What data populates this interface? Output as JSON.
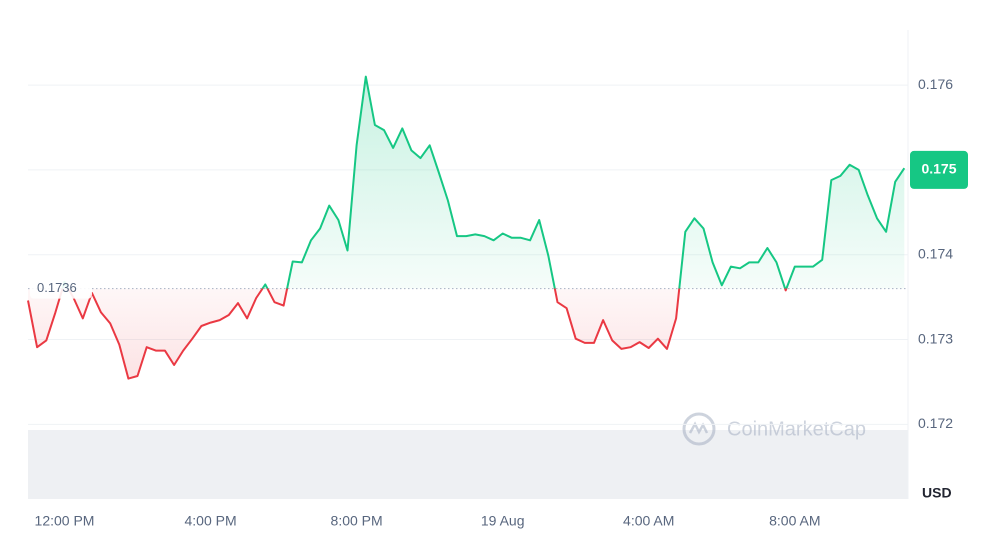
{
  "chart_data": {
    "type": "line",
    "x": [
      -1,
      -0.75,
      -0.5,
      -0.25,
      0,
      0.25,
      0.5,
      0.75,
      1,
      1.25,
      1.5,
      1.75,
      2,
      2.25,
      2.5,
      2.75,
      3,
      3.25,
      3.5,
      3.75,
      4,
      4.25,
      4.5,
      4.75,
      5,
      5.25,
      5.5,
      5.75,
      6,
      6.25,
      6.5,
      6.75,
      7,
      7.25,
      7.5,
      7.75,
      8,
      8.25,
      8.5,
      8.75,
      9,
      9.25,
      9.5,
      9.75,
      10,
      10.25,
      10.5,
      10.75,
      11,
      11.25,
      11.5,
      11.75,
      12,
      12.25,
      12.5,
      12.75,
      13,
      13.25,
      13.5,
      13.75,
      14,
      14.25,
      14.5,
      14.75,
      15,
      15.25,
      15.5,
      15.75,
      16,
      16.25,
      16.5,
      16.75,
      17,
      17.25,
      17.5,
      17.75,
      18,
      18.25,
      18.5,
      18.75,
      19,
      19.25,
      19.5,
      19.75,
      20,
      20.25,
      20.5,
      20.75,
      21,
      21.25,
      21.5,
      21.75,
      22,
      22.25,
      22.5,
      22.75,
      23
    ],
    "series": [
      {
        "name": "USD",
        "values": [
          0.17346,
          0.17291,
          0.17299,
          0.17332,
          0.17368,
          0.17349,
          0.17325,
          0.17355,
          0.17332,
          0.17319,
          0.17294,
          0.17254,
          0.17257,
          0.17291,
          0.17287,
          0.17287,
          0.1727,
          0.17287,
          0.17301,
          0.17316,
          0.1732,
          0.17323,
          0.17329,
          0.17343,
          0.17325,
          0.17349,
          0.17365,
          0.17344,
          0.1734,
          0.17392,
          0.17391,
          0.17417,
          0.17431,
          0.17458,
          0.17441,
          0.17405,
          0.17529,
          0.1761,
          0.17553,
          0.17547,
          0.17526,
          0.17549,
          0.17523,
          0.17514,
          0.17529,
          0.17497,
          0.17464,
          0.17422,
          0.17422,
          0.17424,
          0.17422,
          0.17417,
          0.17425,
          0.1742,
          0.1742,
          0.17417,
          0.17441,
          0.17399,
          0.17344,
          0.17337,
          0.17301,
          0.17296,
          0.17296,
          0.17323,
          0.17299,
          0.17289,
          0.17291,
          0.17297,
          0.1729,
          0.17301,
          0.17289,
          0.17325,
          0.17427,
          0.17443,
          0.17431,
          0.17391,
          0.17364,
          0.17386,
          0.17384,
          0.17391,
          0.17391,
          0.17408,
          0.17391,
          0.17358,
          0.17386,
          0.17386,
          0.17386,
          0.17394,
          0.17488,
          0.17493,
          0.17506,
          0.175,
          0.1747,
          0.17443,
          0.17427,
          0.17486,
          0.17502
        ]
      }
    ],
    "up_color": "#16c784",
    "down_color": "#ea3943",
    "baseline": 0.1736,
    "current_price": 0.175,
    "xlim": [
      -1,
      23.1
    ],
    "xticks": [
      {
        "value": 0,
        "label": "12:00 PM"
      },
      {
        "value": 4,
        "label": "4:00 PM"
      },
      {
        "value": 8,
        "label": "8:00 PM"
      },
      {
        "value": 12,
        "label": "19 Aug"
      },
      {
        "value": 16,
        "label": "4:00 AM"
      },
      {
        "value": 20,
        "label": "8:00 AM"
      }
    ],
    "ylim": [
      0.17112,
      0.17665
    ],
    "yticks": [
      0.172,
      0.173,
      0.174,
      0.175,
      0.176
    ],
    "y_axis_label": "USD",
    "watermark": "CoinMarketCap",
    "grid": true
  }
}
